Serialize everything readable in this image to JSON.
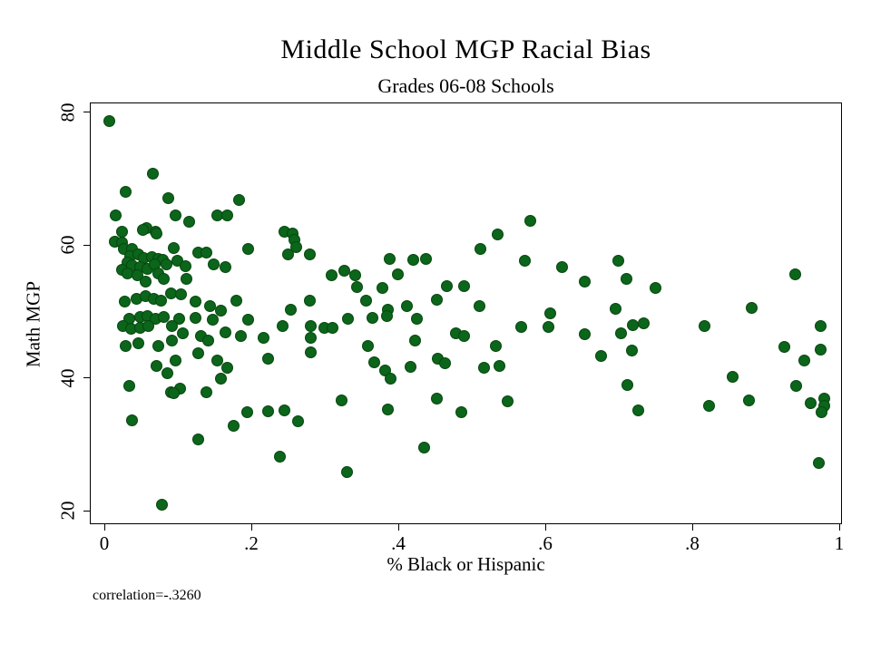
{
  "chart_data": {
    "type": "scatter",
    "title": "Middle School MGP Racial Bias",
    "subtitle": "Grades 06-08 Schools",
    "xlabel": "% Black or Hispanic",
    "ylabel": "Math MGP",
    "annotation": "correlation=-.3260",
    "xlim": [
      0,
      1
    ],
    "ylim": [
      20,
      80
    ],
    "xticks": [
      0,
      0.2,
      0.4,
      0.6,
      0.8,
      1
    ],
    "xtick_labels": [
      "0",
      ".2",
      ".4",
      ".6",
      ".8",
      "1"
    ],
    "yticks": [
      20,
      40,
      60,
      80
    ],
    "ytick_labels": [
      "20",
      "40",
      "60",
      "80"
    ],
    "grid": false,
    "legend": "none",
    "marker_color": "#0b651a",
    "marker_size_px": 13,
    "points": [
      [
        0.005,
        78.9
      ],
      [
        0.065,
        70.9
      ],
      [
        0.028,
        68.2
      ],
      [
        0.086,
        67.2
      ],
      [
        0.182,
        66.9
      ],
      [
        0.014,
        64.6
      ],
      [
        0.096,
        64.6
      ],
      [
        0.114,
        63.7
      ],
      [
        0.152,
        64.6
      ],
      [
        0.166,
        64.6
      ],
      [
        0.056,
        62.7
      ],
      [
        0.023,
        62.2
      ],
      [
        0.051,
        62.4
      ],
      [
        0.069,
        62.1
      ],
      [
        0.07,
        61.9
      ],
      [
        0.013,
        60.7
      ],
      [
        0.023,
        60.5
      ],
      [
        0.025,
        59.5
      ],
      [
        0.037,
        59.6
      ],
      [
        0.093,
        59.7
      ],
      [
        0.195,
        59.6
      ],
      [
        0.126,
        59.0
      ],
      [
        0.138,
        59.0
      ],
      [
        0.034,
        58.5
      ],
      [
        0.045,
        58.7
      ],
      [
        0.053,
        58.2
      ],
      [
        0.063,
        58.4
      ],
      [
        0.072,
        58.1
      ],
      [
        0.078,
        57.9
      ],
      [
        0.03,
        57.5
      ],
      [
        0.037,
        57.1
      ],
      [
        0.047,
        56.9
      ],
      [
        0.057,
        56.6
      ],
      [
        0.067,
        57.2
      ],
      [
        0.083,
        57.3
      ],
      [
        0.098,
        57.8
      ],
      [
        0.109,
        57.0
      ],
      [
        0.148,
        57.3
      ],
      [
        0.164,
        56.9
      ],
      [
        0.023,
        56.4
      ],
      [
        0.03,
        55.9
      ],
      [
        0.044,
        55.6
      ],
      [
        0.072,
        55.9
      ],
      [
        0.111,
        55.0
      ],
      [
        0.055,
        54.6
      ],
      [
        0.08,
        55.1
      ],
      [
        0.026,
        51.6
      ],
      [
        0.043,
        52.1
      ],
      [
        0.055,
        52.4
      ],
      [
        0.066,
        52.1
      ],
      [
        0.076,
        51.8
      ],
      [
        0.089,
        52.9
      ],
      [
        0.103,
        52.8
      ],
      [
        0.123,
        51.6
      ],
      [
        0.142,
        50.9
      ],
      [
        0.158,
        50.3
      ],
      [
        0.179,
        51.8
      ],
      [
        0.033,
        49.1
      ],
      [
        0.047,
        49.3
      ],
      [
        0.058,
        49.4
      ],
      [
        0.068,
        49.1
      ],
      [
        0.08,
        49.3
      ],
      [
        0.101,
        49.0
      ],
      [
        0.123,
        49.2
      ],
      [
        0.146,
        48.9
      ],
      [
        0.195,
        48.9
      ],
      [
        0.024,
        47.9
      ],
      [
        0.035,
        47.6
      ],
      [
        0.047,
        47.7
      ],
      [
        0.059,
        48.0
      ],
      [
        0.091,
        47.9
      ],
      [
        0.105,
        46.8
      ],
      [
        0.13,
        46.4
      ],
      [
        0.14,
        45.8
      ],
      [
        0.163,
        47.0
      ],
      [
        0.185,
        46.4
      ],
      [
        0.216,
        46.2
      ],
      [
        0.028,
        45.0
      ],
      [
        0.045,
        45.3
      ],
      [
        0.072,
        44.9
      ],
      [
        0.091,
        45.8
      ],
      [
        0.126,
        43.9
      ],
      [
        0.152,
        42.7
      ],
      [
        0.166,
        41.6
      ],
      [
        0.221,
        43.0
      ],
      [
        0.07,
        42.0
      ],
      [
        0.084,
        40.9
      ],
      [
        0.096,
        42.7
      ],
      [
        0.158,
        40.0
      ],
      [
        0.033,
        38.9
      ],
      [
        0.089,
        38.0
      ],
      [
        0.102,
        38.5
      ],
      [
        0.138,
        38.0
      ],
      [
        0.093,
        37.9
      ],
      [
        0.036,
        33.8
      ],
      [
        0.175,
        32.9
      ],
      [
        0.193,
        34.9
      ],
      [
        0.221,
        35.1
      ],
      [
        0.126,
        30.9
      ],
      [
        0.077,
        21.0
      ],
      [
        0.244,
        62.2
      ],
      [
        0.255,
        61.9
      ],
      [
        0.258,
        60.9
      ],
      [
        0.26,
        59.8
      ],
      [
        0.249,
        58.7
      ],
      [
        0.278,
        58.7
      ],
      [
        0.308,
        55.6
      ],
      [
        0.325,
        56.3
      ],
      [
        0.34,
        55.6
      ],
      [
        0.398,
        55.7
      ],
      [
        0.387,
        58.0
      ],
      [
        0.419,
        57.9
      ],
      [
        0.437,
        58.1
      ],
      [
        0.342,
        53.8
      ],
      [
        0.377,
        53.7
      ],
      [
        0.465,
        53.9
      ],
      [
        0.488,
        54.0
      ],
      [
        0.355,
        51.8
      ],
      [
        0.41,
        51.0
      ],
      [
        0.451,
        51.9
      ],
      [
        0.278,
        51.8
      ],
      [
        0.253,
        50.4
      ],
      [
        0.384,
        50.4
      ],
      [
        0.241,
        48.0
      ],
      [
        0.28,
        47.9
      ],
      [
        0.298,
        47.7
      ],
      [
        0.309,
        47.7
      ],
      [
        0.33,
        49.0
      ],
      [
        0.364,
        49.2
      ],
      [
        0.383,
        49.4
      ],
      [
        0.424,
        49.1
      ],
      [
        0.28,
        46.2
      ],
      [
        0.28,
        44.0
      ],
      [
        0.358,
        45.0
      ],
      [
        0.422,
        45.8
      ],
      [
        0.477,
        46.8
      ],
      [
        0.488,
        46.4
      ],
      [
        0.366,
        42.5
      ],
      [
        0.381,
        41.2
      ],
      [
        0.388,
        40.0
      ],
      [
        0.416,
        41.8
      ],
      [
        0.452,
        43.0
      ],
      [
        0.462,
        42.3
      ],
      [
        0.321,
        36.8
      ],
      [
        0.384,
        35.4
      ],
      [
        0.244,
        35.3
      ],
      [
        0.262,
        33.6
      ],
      [
        0.451,
        37.0
      ],
      [
        0.484,
        34.9
      ],
      [
        0.434,
        29.6
      ],
      [
        0.238,
        28.3
      ],
      [
        0.329,
        26.0
      ],
      [
        0.578,
        63.8
      ],
      [
        0.534,
        61.7
      ],
      [
        0.51,
        59.6
      ],
      [
        0.571,
        57.8
      ],
      [
        0.621,
        56.8
      ],
      [
        0.652,
        54.6
      ],
      [
        0.698,
        57.8
      ],
      [
        0.709,
        55.1
      ],
      [
        0.749,
        53.7
      ],
      [
        0.509,
        51.0
      ],
      [
        0.606,
        49.9
      ],
      [
        0.695,
        50.6
      ],
      [
        0.566,
        47.8
      ],
      [
        0.603,
        47.8
      ],
      [
        0.652,
        46.7
      ],
      [
        0.702,
        46.8
      ],
      [
        0.718,
        48.1
      ],
      [
        0.733,
        48.4
      ],
      [
        0.532,
        44.9
      ],
      [
        0.675,
        43.4
      ],
      [
        0.717,
        44.3
      ],
      [
        0.516,
        41.7
      ],
      [
        0.536,
        42.0
      ],
      [
        0.711,
        39.0
      ],
      [
        0.547,
        36.6
      ],
      [
        0.725,
        35.3
      ],
      [
        0.939,
        55.7
      ],
      [
        0.88,
        50.7
      ],
      [
        0.816,
        47.9
      ],
      [
        0.973,
        47.9
      ],
      [
        0.924,
        44.8
      ],
      [
        0.973,
        44.4
      ],
      [
        0.951,
        42.7
      ],
      [
        0.854,
        40.3
      ],
      [
        0.94,
        38.9
      ],
      [
        0.876,
        36.8
      ],
      [
        0.822,
        35.9
      ],
      [
        0.96,
        36.4
      ],
      [
        0.978,
        37.0
      ],
      [
        0.979,
        35.9
      ],
      [
        0.975,
        34.9
      ],
      [
        0.971,
        27.3
      ]
    ]
  }
}
